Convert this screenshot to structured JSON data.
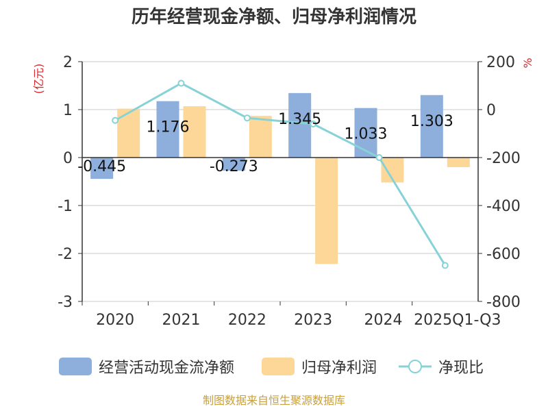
{
  "chart_data": {
    "type": "bar",
    "title": "历年经营现金净额、归母净利润情况",
    "categories": [
      "2020",
      "2021",
      "2022",
      "2023",
      "2024",
      "2025Q1-Q3"
    ],
    "left_axis": {
      "unit": "(亿元)",
      "min": -3,
      "max": 2,
      "ticks": [
        "2",
        "1",
        "0",
        "-1",
        "-2",
        "-3"
      ]
    },
    "right_axis": {
      "unit": "%",
      "min": -800,
      "max": 200,
      "ticks": [
        "200",
        "0",
        "-200",
        "-400",
        "-600",
        "-800"
      ]
    },
    "series": [
      {
        "name": "经营活动现金流净额",
        "type": "bar",
        "axis": "left",
        "color": "#8eaedb",
        "values": [
          -0.445,
          1.176,
          -0.273,
          1.345,
          1.033,
          1.303
        ],
        "labels": [
          "-0.445",
          "1.176",
          "-0.273",
          "1.345",
          "1.033",
          "1.303"
        ]
      },
      {
        "name": "归母净利润",
        "type": "bar",
        "axis": "left",
        "color": "#fdd798",
        "values": [
          1.02,
          1.07,
          0.87,
          -2.22,
          -0.52,
          -0.2
        ]
      },
      {
        "name": "净现比",
        "type": "line",
        "axis": "right",
        "color": "#86d2d7",
        "values": [
          -45,
          110,
          -35,
          -60,
          -200,
          -650
        ]
      }
    ],
    "title_color": "#333333",
    "unit_color": "#d9262b"
  },
  "source": {
    "text": "制图数据来自恒生聚源数据库",
    "color": "#c8a03c"
  }
}
